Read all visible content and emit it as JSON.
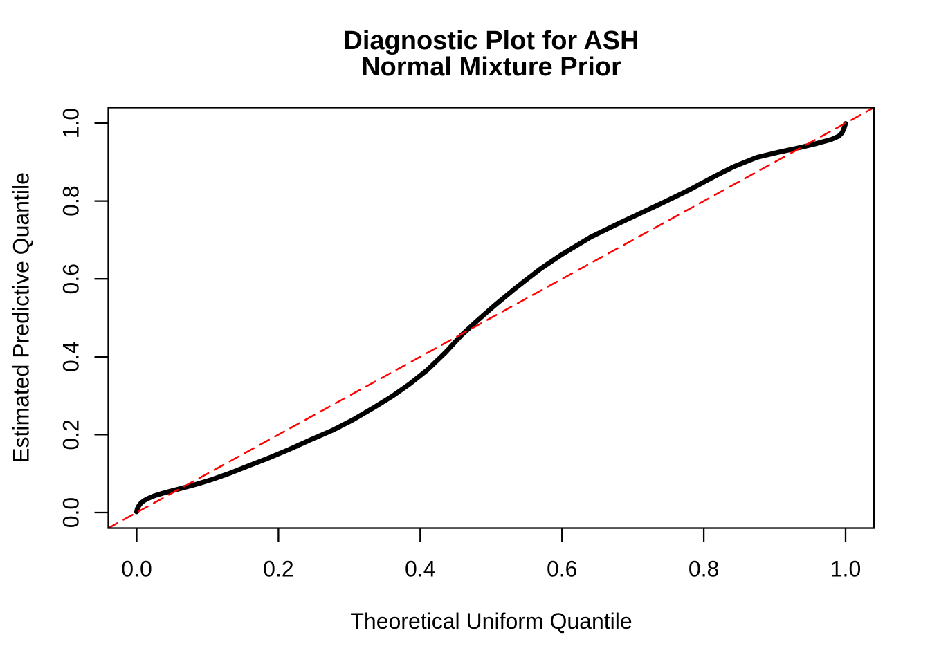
{
  "title": {
    "line1": "Diagnostic Plot for ASH",
    "line2": "Normal Mixture Prior"
  },
  "axes": {
    "x_label": "Theoretical Uniform Quantile",
    "y_label": "Estimated Predictive Quantile"
  },
  "colors": {
    "curve": "#000000",
    "reference_line": "#FF0000",
    "frame": "#000000",
    "background": "#FFFFFF"
  },
  "chart_data": {
    "type": "line",
    "title": "Diagnostic Plot for ASH / Normal Mixture Prior",
    "xlabel": "Theoretical Uniform Quantile",
    "ylabel": "Estimated Predictive Quantile",
    "xlim": [
      -0.04,
      1.04
    ],
    "ylim": [
      -0.04,
      1.04
    ],
    "grid": false,
    "legend": "none",
    "xticks": [
      0.0,
      0.2,
      0.4,
      0.6,
      0.8,
      1.0
    ],
    "yticks": [
      0.0,
      0.2,
      0.4,
      0.6,
      0.8,
      1.0
    ],
    "xtick_labels": [
      "0.0",
      "0.2",
      "0.4",
      "0.6",
      "0.8",
      "1.0"
    ],
    "ytick_labels": [
      "0.0",
      "0.2",
      "0.4",
      "0.6",
      "0.8",
      "1.0"
    ],
    "series": [
      {
        "name": "estimated-predictive-quantile-curve",
        "style": "solid",
        "color": "#000000",
        "line_width": 7,
        "points": [
          [
            0.0,
            0.002
          ],
          [
            0.001,
            0.01
          ],
          [
            0.003,
            0.017
          ],
          [
            0.006,
            0.024
          ],
          [
            0.01,
            0.03
          ],
          [
            0.016,
            0.036
          ],
          [
            0.025,
            0.043
          ],
          [
            0.036,
            0.049
          ],
          [
            0.048,
            0.055
          ],
          [
            0.065,
            0.063
          ],
          [
            0.085,
            0.073
          ],
          [
            0.105,
            0.084
          ],
          [
            0.13,
            0.1
          ],
          [
            0.158,
            0.12
          ],
          [
            0.185,
            0.139
          ],
          [
            0.215,
            0.162
          ],
          [
            0.248,
            0.189
          ],
          [
            0.276,
            0.211
          ],
          [
            0.305,
            0.238
          ],
          [
            0.335,
            0.27
          ],
          [
            0.36,
            0.298
          ],
          [
            0.385,
            0.33
          ],
          [
            0.41,
            0.366
          ],
          [
            0.435,
            0.41
          ],
          [
            0.458,
            0.455
          ],
          [
            0.48,
            0.492
          ],
          [
            0.505,
            0.532
          ],
          [
            0.535,
            0.577
          ],
          [
            0.569,
            0.625
          ],
          [
            0.6,
            0.663
          ],
          [
            0.64,
            0.707
          ],
          [
            0.675,
            0.738
          ],
          [
            0.71,
            0.768
          ],
          [
            0.745,
            0.798
          ],
          [
            0.78,
            0.829
          ],
          [
            0.815,
            0.863
          ],
          [
            0.842,
            0.888
          ],
          [
            0.875,
            0.912
          ],
          [
            0.905,
            0.925
          ],
          [
            0.935,
            0.937
          ],
          [
            0.96,
            0.948
          ],
          [
            0.98,
            0.958
          ],
          [
            0.99,
            0.966
          ],
          [
            0.995,
            0.975
          ],
          [
            0.998,
            0.988
          ],
          [
            1.0,
            0.999
          ]
        ]
      },
      {
        "name": "identity-reference-line",
        "style": "dashed",
        "color": "#FF0000",
        "line_width": 2.5,
        "points": [
          [
            -0.04,
            -0.04
          ],
          [
            1.04,
            1.04
          ]
        ]
      }
    ]
  }
}
